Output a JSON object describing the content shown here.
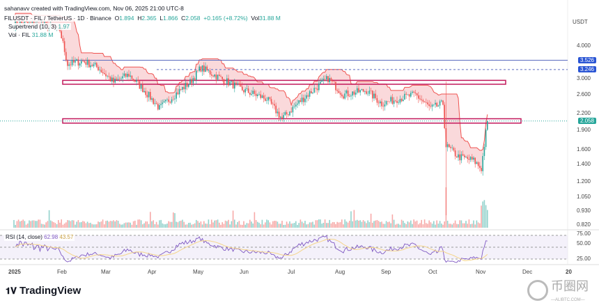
{
  "header": {
    "credit": "sahanavv created with TradingView.com, Nov 06, 2025 21:00 UTC-8",
    "symbol": "FILUSDT · FIL / TetherUS · 1D · Binance",
    "o_label": "O",
    "o": "1.894",
    "h_label": "H",
    "h": "2.365",
    "l_label": "L",
    "l": "1.866",
    "c_label": "C",
    "c": "2.058",
    "change": "+0.165 (+8.72%)",
    "vol_label": "Vol",
    "vol": "31.88 M",
    "supertrend": "Supertrend (10, 3)",
    "supertrend_val": "1.97",
    "volume_label": "Vol · FIL",
    "volume_val": "31.88 M"
  },
  "price_axis": {
    "currency": "USDT",
    "ticks": [
      "4.000",
      "3.000",
      "2.600",
      "2.200",
      "1.900",
      "1.600",
      "1.400",
      "1.200",
      "1.050",
      "0.930",
      "0.820"
    ],
    "tags": [
      {
        "value": "3.526",
        "color": "#2a55d4"
      },
      {
        "value": "3.246",
        "color": "#2a55d4"
      },
      {
        "value": "2.058",
        "color": "#26a69a"
      }
    ]
  },
  "rsi": {
    "label": "RSI (14, close)",
    "value": "62.98",
    "ma_value": "43.57",
    "ticks": [
      "75.00",
      "50.00",
      "25.00"
    ]
  },
  "time_axis": [
    "2025",
    "Feb",
    "Mar",
    "Apr",
    "May",
    "Jun",
    "Jul",
    "Aug",
    "Sep",
    "Oct",
    "Nov",
    "Dec",
    "20"
  ],
  "footer": {
    "brand": "TradingView",
    "watermark": "币圈网",
    "watermark_sub": "—ALIBTC.COM—"
  },
  "chart_data": {
    "type": "candlestick",
    "scale": "log",
    "anchor_closes": [
      [
        0,
        4.9
      ],
      [
        20,
        4.8
      ],
      [
        30,
        4.6
      ],
      [
        35,
        3.4
      ],
      [
        45,
        3.5
      ],
      [
        55,
        3.3
      ],
      [
        65,
        2.9
      ],
      [
        75,
        3.1
      ],
      [
        85,
        2.7
      ],
      [
        95,
        2.3
      ],
      [
        105,
        2.6
      ],
      [
        115,
        2.9
      ],
      [
        122,
        3.3
      ],
      [
        135,
        3.0
      ],
      [
        150,
        2.7
      ],
      [
        165,
        2.5
      ],
      [
        175,
        2.1
      ],
      [
        185,
        2.4
      ],
      [
        195,
        2.7
      ],
      [
        205,
        3.0
      ],
      [
        215,
        2.6
      ],
      [
        230,
        2.7
      ],
      [
        240,
        2.4
      ],
      [
        250,
        2.5
      ],
      [
        262,
        2.6
      ],
      [
        272,
        2.3
      ],
      [
        280,
        2.4
      ],
      [
        282,
        1.65
      ],
      [
        290,
        1.5
      ],
      [
        300,
        1.45
      ],
      [
        305,
        1.35
      ],
      [
        309,
        2.058
      ]
    ],
    "zones": [
      {
        "low": 2.85,
        "high": 2.95
      },
      {
        "low": 2.02,
        "high": 2.1
      }
    ],
    "lines": [
      {
        "value": 3.526,
        "style": "solid"
      },
      {
        "value": 3.246,
        "style": "dashed"
      }
    ],
    "colors": {
      "up": "#26a69a",
      "down": "#ef5350",
      "zone": "#c2185b",
      "supertrend_fill": "#f8c9cc",
      "rsi": "#7e57c2",
      "rsi_ma": "#f5d58a"
    }
  }
}
